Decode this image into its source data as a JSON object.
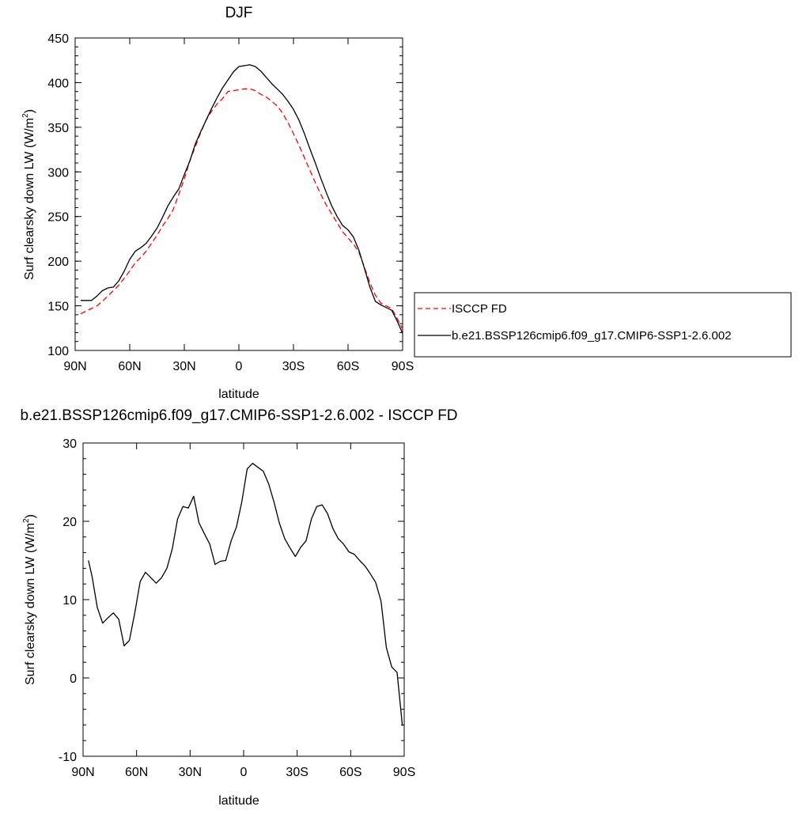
{
  "chart_data": [
    {
      "type": "line",
      "title": "DJF",
      "xlabel": "latitude",
      "ylabel": "Surf clearsky down LW (W/m",
      "ylabel_sup": "2",
      "ylabel_close": ")",
      "xlim": [
        90,
        -90
      ],
      "ylim": [
        100,
        450
      ],
      "xticks": [
        90,
        60,
        30,
        0,
        -30,
        -60,
        -90
      ],
      "xtick_labels": [
        "90N",
        "60N",
        "30N",
        "0",
        "30S",
        "60S",
        "90S"
      ],
      "yticks": [
        100,
        150,
        200,
        250,
        300,
        350,
        400,
        450
      ],
      "ytick_labels": [
        "100",
        "150",
        "200",
        "250",
        "300",
        "350",
        "400",
        "450"
      ],
      "legend_position": "right",
      "series": [
        {
          "name": "ISCCP FD",
          "color": "#ff0000",
          "dash": "dashed",
          "x": [
            87,
            84,
            81,
            78,
            75,
            72,
            69,
            66,
            63,
            60,
            57,
            54,
            51,
            48,
            45,
            42,
            39,
            36,
            33,
            30,
            27,
            24,
            21,
            18,
            15,
            12,
            9,
            6,
            3,
            0,
            -3,
            -6,
            -9,
            -12,
            -15,
            -18,
            -21,
            -24,
            -27,
            -30,
            -33,
            -36,
            -39,
            -42,
            -45,
            -48,
            -51,
            -54,
            -57,
            -60,
            -63,
            -66,
            -69,
            -72,
            -75,
            -78,
            -81,
            -84,
            -87,
            -90
          ],
          "y": [
            141,
            144,
            147,
            150,
            155,
            161,
            167,
            173,
            181,
            189,
            198,
            204,
            211,
            220,
            229,
            239,
            248,
            258,
            275,
            292,
            312,
            328,
            344,
            358,
            368,
            376,
            382,
            390,
            391,
            392,
            393,
            393,
            391,
            387,
            384,
            379,
            374,
            366,
            355,
            343,
            330,
            316,
            302,
            288,
            275,
            263,
            253,
            243,
            233,
            226,
            219,
            210,
            193,
            176,
            162,
            153,
            150,
            147,
            136,
            124
          ]
        },
        {
          "name": "b.e21.BSSP126cmip6.f09_g17.CMIP6-SSP1-2.6.002",
          "color": "#000000",
          "dash": "solid",
          "x": [
            87,
            84,
            81,
            78,
            75,
            72,
            69,
            66,
            63,
            60,
            57,
            54,
            51,
            48,
            45,
            42,
            39,
            36,
            33,
            30,
            27,
            24,
            21,
            18,
            15,
            12,
            9,
            6,
            3,
            0,
            -3,
            -6,
            -9,
            -12,
            -15,
            -18,
            -21,
            -24,
            -27,
            -30,
            -33,
            -36,
            -39,
            -42,
            -45,
            -48,
            -51,
            -54,
            -57,
            -60,
            -63,
            -66,
            -69,
            -72,
            -75,
            -78,
            -81,
            -84,
            -87,
            -90
          ],
          "y": [
            156,
            156,
            156,
            161,
            167,
            170,
            171,
            178,
            189,
            202,
            211,
            215,
            220,
            228,
            237,
            249,
            262,
            272,
            281,
            297,
            312,
            331,
            345,
            358,
            371,
            383,
            394,
            403,
            412,
            418,
            419,
            420,
            418,
            413,
            406,
            399,
            393,
            387,
            379,
            370,
            358,
            343,
            326,
            310,
            293,
            277,
            262,
            250,
            240,
            235,
            227,
            212,
            192,
            171,
            155,
            151,
            148,
            145,
            133,
            119
          ]
        }
      ]
    },
    {
      "type": "line",
      "title": "b.e21.BSSP126cmip6.f09_g17.CMIP6-SSP1-2.6.002 - ISCCP FD",
      "xlabel": "latitude",
      "ylabel": "Surf clearsky down LW (W/m",
      "ylabel_sup": "2",
      "ylabel_close": ")",
      "xlim": [
        90,
        -90
      ],
      "ylim": [
        -10,
        30
      ],
      "xticks": [
        90,
        60,
        30,
        0,
        -30,
        -60,
        -90
      ],
      "xtick_labels": [
        "90N",
        "60N",
        "30N",
        "0",
        "30S",
        "60S",
        "90S"
      ],
      "yticks": [
        -10,
        0,
        10,
        20,
        30
      ],
      "ytick_labels": [
        "-10",
        "0",
        "10",
        "20",
        "30"
      ],
      "series": [
        {
          "color": "#000000",
          "dash": "solid",
          "x": [
            87,
            85,
            82,
            79,
            76,
            73,
            70,
            67,
            64,
            61,
            58,
            55,
            52,
            49,
            46,
            43,
            40,
            37,
            34,
            31,
            28,
            25,
            22,
            19,
            16,
            13,
            10,
            7,
            4,
            1,
            -2,
            -5,
            -8,
            -11,
            -14,
            -17,
            -20,
            -23,
            -26,
            -29,
            -32,
            -35,
            -38,
            -41,
            -44,
            -47,
            -50,
            -53,
            -56,
            -59,
            -62,
            -65,
            -68,
            -71,
            -74,
            -77,
            -80,
            -83,
            -86,
            -89
          ],
          "y": [
            15.0,
            13.0,
            9.0,
            7.0,
            7.7,
            8.3,
            7.5,
            4.1,
            4.8,
            8.3,
            12.3,
            13.5,
            12.8,
            12.1,
            12.8,
            14.0,
            16.5,
            20.3,
            21.9,
            21.7,
            23.2,
            19.8,
            18.4,
            17.1,
            14.5,
            14.9,
            15.0,
            17.5,
            19.3,
            22.5,
            26.7,
            27.4,
            26.9,
            26.4,
            24.8,
            22.5,
            19.8,
            17.8,
            16.6,
            15.5,
            16.7,
            17.5,
            20.3,
            21.9,
            22.1,
            21.0,
            19.1,
            17.8,
            17.1,
            16.1,
            15.8,
            15.0,
            14.3,
            13.3,
            12.2,
            9.8,
            3.9,
            1.4,
            0.7,
            -6.1
          ]
        }
      ]
    }
  ]
}
